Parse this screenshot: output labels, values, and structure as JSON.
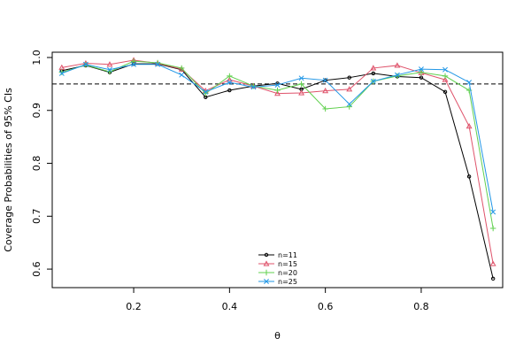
{
  "chart_data": {
    "type": "line",
    "title": "",
    "xlabel": "θ",
    "ylabel": "Coverage Probabilities of 95% CIs",
    "xlim": [
      0.03,
      0.97
    ],
    "ylim": [
      0.565,
      1.01
    ],
    "xticks": [
      0.2,
      0.4,
      0.6,
      0.8
    ],
    "xtick_labels": [
      "0.2",
      "0.4",
      "0.6",
      "0.8"
    ],
    "yticks": [
      0.6,
      0.7,
      0.8,
      0.9,
      1.0
    ],
    "ytick_labels": [
      "0.6",
      "0.7",
      "0.8",
      "0.9",
      "1.0"
    ],
    "reference_line": {
      "y": 0.95,
      "style": "dashed"
    },
    "grid": false,
    "legend_position": "bottom-center",
    "x": [
      0.05,
      0.1,
      0.15,
      0.2,
      0.25,
      0.3,
      0.35,
      0.4,
      0.45,
      0.5,
      0.55,
      0.6,
      0.65,
      0.7,
      0.75,
      0.8,
      0.85,
      0.9,
      0.95
    ],
    "series": [
      {
        "name": "n=11",
        "color": "#000000",
        "marker": "circle",
        "values": [
          0.975,
          0.985,
          0.972,
          0.988,
          0.988,
          0.977,
          0.925,
          0.938,
          0.946,
          0.951,
          0.94,
          0.957,
          0.962,
          0.97,
          0.964,
          0.962,
          0.935,
          0.775,
          0.582
        ]
      },
      {
        "name": "n=15",
        "color": "#DF536B",
        "marker": "triangle",
        "values": [
          0.981,
          0.989,
          0.987,
          0.995,
          0.989,
          0.978,
          0.937,
          0.958,
          0.946,
          0.932,
          0.933,
          0.937,
          0.94,
          0.98,
          0.985,
          0.971,
          0.958,
          0.87,
          0.61
        ]
      },
      {
        "name": "n=20",
        "color": "#61D04F",
        "marker": "plus",
        "values": [
          0.972,
          0.986,
          0.973,
          0.993,
          0.99,
          0.98,
          0.932,
          0.965,
          0.946,
          0.938,
          0.95,
          0.903,
          0.907,
          0.955,
          0.965,
          0.972,
          0.965,
          0.938,
          0.677
        ]
      },
      {
        "name": "n=25",
        "color": "#2297E6",
        "marker": "cross",
        "values": [
          0.97,
          0.987,
          0.977,
          0.987,
          0.987,
          0.967,
          0.935,
          0.953,
          0.944,
          0.948,
          0.961,
          0.957,
          0.912,
          0.955,
          0.967,
          0.978,
          0.977,
          0.953,
          0.708
        ]
      }
    ]
  }
}
